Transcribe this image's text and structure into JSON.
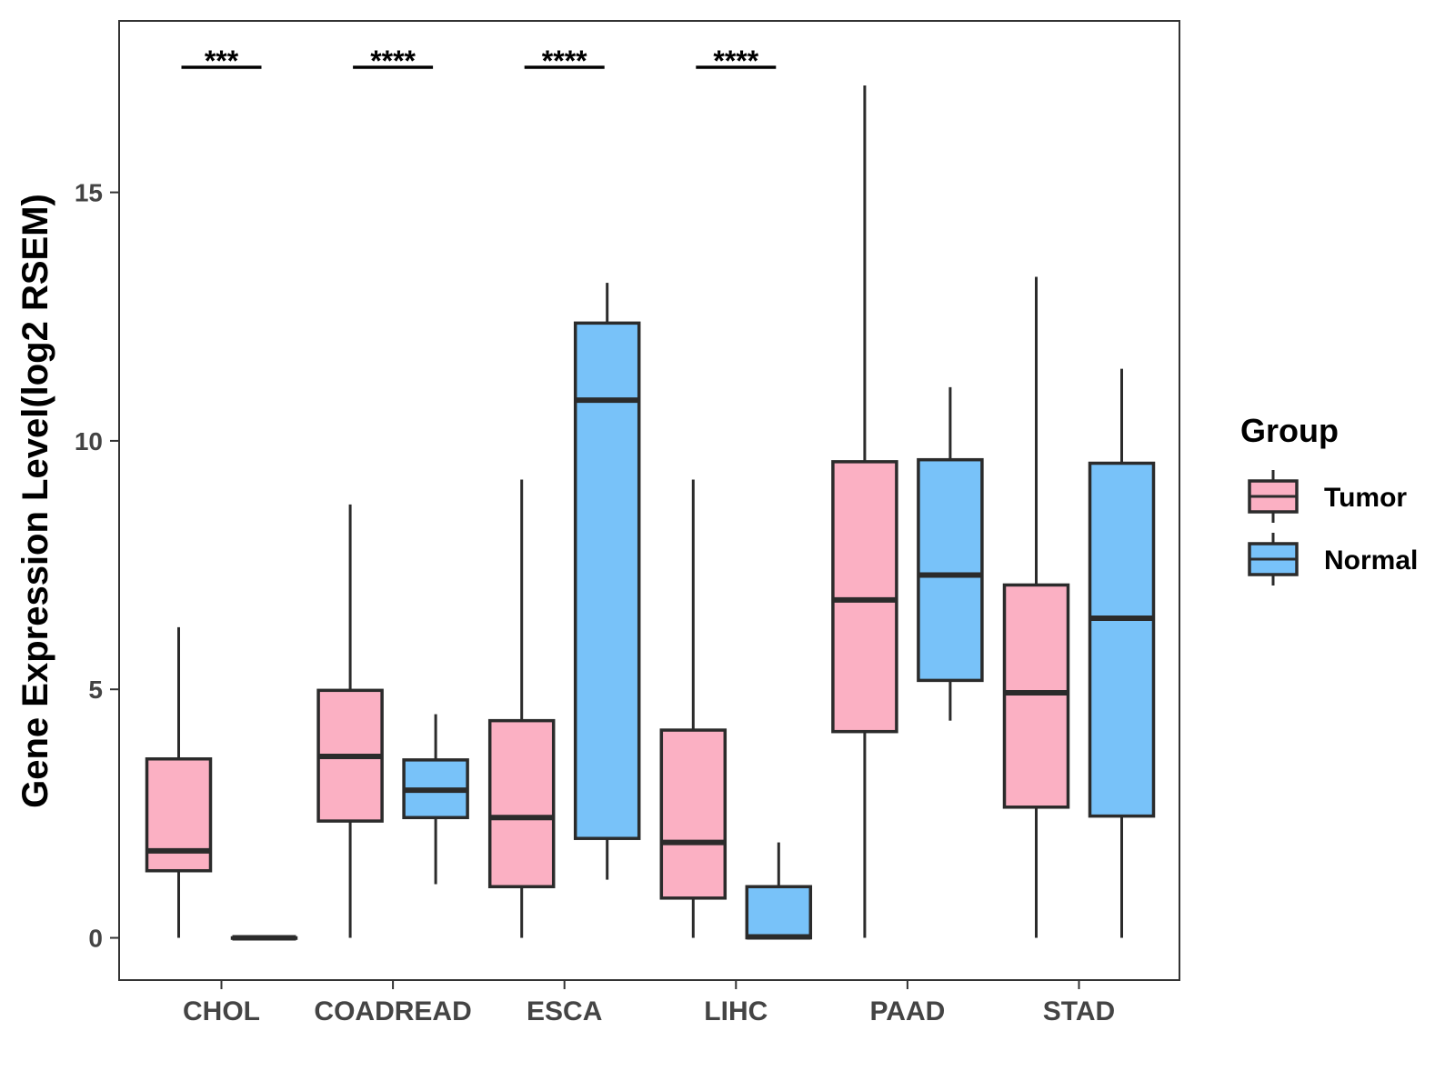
{
  "chart_data": {
    "type": "boxplot",
    "title": "",
    "xlabel": "",
    "ylabel": "Gene Expression Level(log2 RSEM)",
    "ylim": [
      -0.85,
      18.45
    ],
    "yticks": [
      0,
      5,
      10,
      15
    ],
    "ytick_labels": [
      "0",
      "5",
      "10",
      "15"
    ],
    "grid": false,
    "categories": [
      "CHOL",
      "COADREAD",
      "ESCA",
      "LIHC",
      "PAAD",
      "STAD"
    ],
    "series": [
      {
        "name": "Tumor",
        "color": "#FBB0C3",
        "boxes": [
          {
            "category": "CHOL",
            "min": 0,
            "q1": 1.35,
            "median": 1.75,
            "q3": 3.6,
            "max": 6.25
          },
          {
            "category": "COADREAD",
            "min": 0,
            "q1": 2.35,
            "median": 3.65,
            "q3": 4.98,
            "max": 8.72
          },
          {
            "category": "ESCA",
            "min": 0,
            "q1": 1.03,
            "median": 2.42,
            "q3": 4.37,
            "max": 9.22
          },
          {
            "category": "LIHC",
            "min": 0,
            "q1": 0.8,
            "median": 1.92,
            "q3": 4.18,
            "max": 9.22
          },
          {
            "category": "PAAD",
            "min": 0,
            "q1": 4.15,
            "median": 6.8,
            "q3": 9.58,
            "max": 17.15
          },
          {
            "category": "STAD",
            "min": 0,
            "q1": 2.63,
            "median": 4.93,
            "q3": 7.1,
            "max": 13.3
          }
        ]
      },
      {
        "name": "Normal",
        "color": "#78C2F9",
        "boxes": [
          {
            "category": "CHOL",
            "min": 0,
            "q1": 0,
            "median": 0,
            "q3": 0,
            "max": 0
          },
          {
            "category": "COADREAD",
            "min": 1.08,
            "q1": 2.42,
            "median": 2.97,
            "q3": 3.58,
            "max": 4.5
          },
          {
            "category": "ESCA",
            "min": 1.17,
            "q1": 2.0,
            "median": 10.82,
            "q3": 12.37,
            "max": 13.18
          },
          {
            "category": "LIHC",
            "min": 0,
            "q1": 0,
            "median": 0.02,
            "q3": 1.03,
            "max": 1.92
          },
          {
            "category": "PAAD",
            "min": 4.37,
            "q1": 5.18,
            "median": 7.3,
            "q3": 9.62,
            "max": 11.08
          },
          {
            "category": "STAD",
            "min": 0,
            "q1": 2.45,
            "median": 6.43,
            "q3": 9.55,
            "max": 11.45
          }
        ]
      }
    ],
    "significance": [
      {
        "category": "CHOL",
        "label": "***"
      },
      {
        "category": "COADREAD",
        "label": "****"
      },
      {
        "category": "ESCA",
        "label": "****"
      },
      {
        "category": "LIHC",
        "label": "****"
      }
    ],
    "legend": {
      "title": "Group",
      "position": "right",
      "entries": [
        {
          "label": "Tumor",
          "color": "#FBB0C3"
        },
        {
          "label": "Normal",
          "color": "#78C2F9"
        }
      ]
    }
  }
}
